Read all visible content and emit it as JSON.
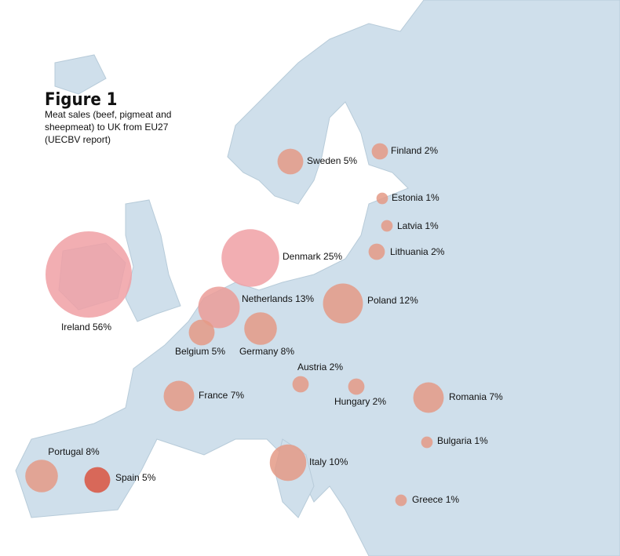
{
  "title": "Figure 1",
  "subtitle": [
    "Meat sales (beef, pigmeat and",
    "sheepmeat) to UK from EU27",
    "(UECBV report)"
  ],
  "countries": [
    {
      "name": "Sweden",
      "value": 5,
      "label": "5%",
      "color": "#e49a86"
    },
    {
      "name": "Finland",
      "value": 2,
      "label": "2%",
      "color": "#e49a86"
    },
    {
      "name": "Estonia",
      "value": 1,
      "label": "1%",
      "color": "#e49a86"
    },
    {
      "name": "Latvia",
      "value": 1,
      "label": "1%",
      "color": "#e49a86"
    },
    {
      "name": "Lithuania",
      "value": 2,
      "label": "2%",
      "color": "#e49a86"
    },
    {
      "name": "Denmark",
      "value": 25,
      "label": "25%",
      "color": "#f0a0a4"
    },
    {
      "name": "Ireland",
      "value": 56,
      "label": "56%",
      "color": "#f0a0a4"
    },
    {
      "name": "Netherlands",
      "value": 13,
      "label": "13%",
      "color": "#eb9c98"
    },
    {
      "name": "Poland",
      "value": 12,
      "label": "12%",
      "color": "#e49a86"
    },
    {
      "name": "Belgium",
      "value": 5,
      "label": "5%",
      "color": "#e49a86"
    },
    {
      "name": "Germany",
      "value": 8,
      "label": "8%",
      "color": "#e49a86"
    },
    {
      "name": "Austria",
      "value": 2,
      "label": "2%",
      "color": "#e49a86"
    },
    {
      "name": "Hungary",
      "value": 2,
      "label": "2%",
      "color": "#e49a86"
    },
    {
      "name": "France",
      "value": 7,
      "label": "7%",
      "color": "#e49a86"
    },
    {
      "name": "Romania",
      "value": 7,
      "label": "7%",
      "color": "#e49a86"
    },
    {
      "name": "Bulgaria",
      "value": 1,
      "label": "1%",
      "color": "#e49a86"
    },
    {
      "name": "Portugal",
      "value": 8,
      "label": "8%",
      "color": "#e49a86"
    },
    {
      "name": "Spain",
      "value": 5,
      "label": "5%",
      "color": "#d9543f"
    },
    {
      "name": "Italy",
      "value": 10,
      "label": "10%",
      "color": "#e49a86"
    },
    {
      "name": "Greece",
      "value": 1,
      "label": "1%",
      "color": "#e49a86"
    }
  ]
}
